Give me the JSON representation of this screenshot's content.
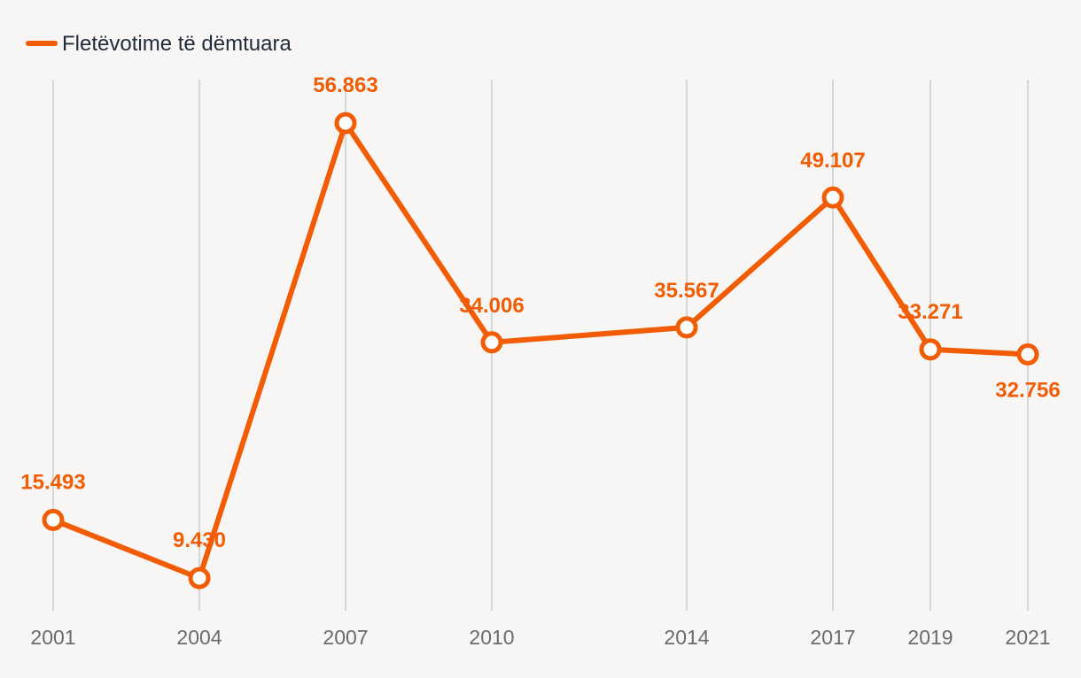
{
  "chart_data": {
    "type": "line",
    "title": "",
    "xlabel": "",
    "ylabel": "",
    "x": [
      "2001",
      "2004",
      "2007",
      "2010",
      "2014",
      "2017",
      "2019",
      "2021"
    ],
    "series": [
      {
        "name": "Fletëvotime të dëmtuara",
        "values": [
          15493,
          9430,
          56863,
          34006,
          35567,
          49107,
          33271,
          32756
        ],
        "labels": [
          "15.493",
          "9.430",
          "56.863",
          "34.006",
          "35.567",
          "49.107",
          "33.271",
          "32.756"
        ]
      }
    ],
    "ylim": [
      0,
      60000
    ],
    "grid": "vertical",
    "legend": "top-left",
    "colors": {
      "series": "#f25c05",
      "marker_fill": "#ffffff",
      "grid": "#d6d6d6",
      "tick": "#6b6b6b",
      "legend_text": "#1f2b3a",
      "background": "#f8f6f4"
    }
  }
}
